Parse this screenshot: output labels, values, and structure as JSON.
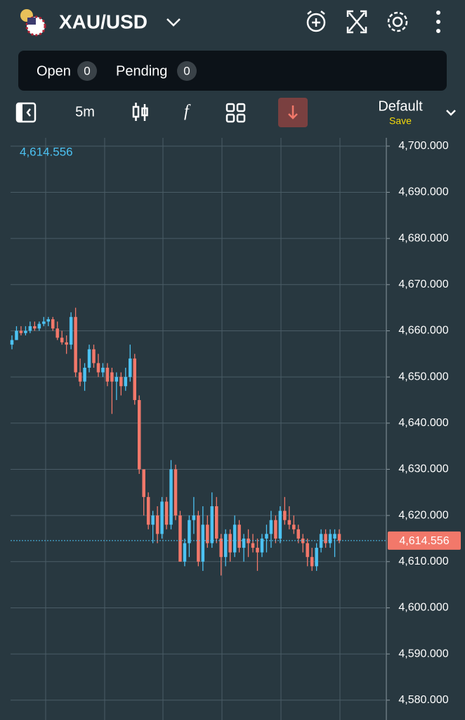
{
  "header": {
    "symbol": "XAU/USD",
    "tabs": [
      {
        "label": "Open",
        "count": 0
      },
      {
        "label": "Pending",
        "count": 0
      }
    ]
  },
  "toolbar": {
    "interval": "5m",
    "layout": "Default",
    "save": "Save"
  },
  "chart_data": {
    "type": "candlestick",
    "open": [
      4657,
      4658,
      4660,
      4659.5,
      4660,
      4661,
      4660.5,
      4661.5,
      4662,
      4662.5,
      4660.5,
      4658.5,
      4657.5,
      4657,
      4663,
      4651,
      4649,
      4652,
      4656,
      4653,
      4651,
      4652,
      4651,
      4649,
      4650,
      4648,
      4650,
      4654,
      4645,
      4630,
      4624,
      4618,
      4620,
      4616,
      4623,
      4618,
      4630,
      4620,
      4610,
      4614,
      4619,
      4620,
      4610,
      4618,
      4614,
      4622,
      4615,
      4611,
      4616,
      4612,
      4618,
      4613,
      4615,
      4614,
      4613,
      4612,
      4615,
      4616,
      4619,
      4615,
      4621,
      4619,
      4618,
      4617,
      4615,
      4614,
      4611,
      4609,
      4613,
      4616,
      4614,
      4615,
      4616
    ],
    "high": [
      4659,
      4661,
      4661,
      4661,
      4662,
      4662,
      4662,
      4663,
      4663,
      4663,
      4662,
      4660,
      4659,
      4664,
      4665,
      4654,
      4653,
      4657,
      4657,
      4655,
      4653,
      4653,
      4652,
      4651,
      4651,
      4652,
      4657,
      4655,
      4646,
      4630,
      4625,
      4621,
      4622,
      4624,
      4624,
      4632,
      4631,
      4621,
      4615,
      4620,
      4624,
      4621,
      4622,
      4620,
      4625,
      4624,
      4616,
      4617,
      4617,
      4620,
      4619,
      4616,
      4617,
      4616,
      4615,
      4616,
      4618,
      4621,
      4620,
      4622,
      4624,
      4622,
      4620,
      4618,
      4616,
      4615,
      4613,
      4614,
      4617,
      4617,
      4617,
      4617,
      4617
    ],
    "low": [
      4656,
      4658,
      4659,
      4659,
      4659.5,
      4660,
      4660,
      4661,
      4661,
      4660,
      4658,
      4657,
      4655,
      4656,
      4650,
      4648,
      4647,
      4651,
      4652,
      4650,
      4650,
      4648,
      4642,
      4645,
      4646,
      4647,
      4649,
      4644,
      4629,
      4620,
      4617,
      4614,
      4614,
      4615,
      4617,
      4617,
      4619,
      4610,
      4609,
      4611,
      4616,
      4609,
      4608,
      4613,
      4613,
      4614,
      4607,
      4609,
      4610,
      4611,
      4612,
      4610,
      4611,
      4612,
      4608,
      4611,
      4612,
      4613,
      4614,
      4614,
      4618,
      4617,
      4616,
      4614,
      4612,
      4609,
      4608,
      4608,
      4612,
      4613,
      4613,
      4611,
      4614
    ],
    "close": [
      4658,
      4660,
      4659.5,
      4660,
      4661,
      4660.5,
      4661.5,
      4662,
      4662.5,
      4660.5,
      4658.5,
      4657.5,
      4657,
      4663,
      4651,
      4649,
      4652,
      4656,
      4653,
      4651,
      4652,
      4649,
      4649,
      4650,
      4648,
      4650,
      4654,
      4645,
      4630,
      4624,
      4618,
      4620,
      4616,
      4623,
      4618,
      4630,
      4620,
      4610,
      4614,
      4619,
      4620,
      4610,
      4618,
      4614,
      4622,
      4615,
      4611,
      4616,
      4612,
      4618,
      4613,
      4615,
      4614,
      4613,
      4612,
      4615,
      4616,
      4619,
      4615,
      4621,
      4619,
      4618,
      4617,
      4615,
      4614,
      4611,
      4609,
      4613,
      4616,
      4614,
      4616,
      4616,
      4614.556
    ],
    "up_color": "#4cc2f2",
    "down_color": "#f2786a",
    "ylim": [
      4575.7,
      4701.8
    ],
    "yticks": [
      {
        "value": 4580,
        "label": "4,580.000"
      },
      {
        "value": 4590,
        "label": "4,590.000"
      },
      {
        "value": 4600,
        "label": "4,600.000"
      },
      {
        "value": 4610,
        "label": "4,610.000"
      },
      {
        "value": 4620,
        "label": "4,620.000"
      },
      {
        "value": 4630,
        "label": "4,630.000"
      },
      {
        "value": 4640,
        "label": "4,640.000"
      },
      {
        "value": 4650,
        "label": "4,650.000"
      },
      {
        "value": 4660,
        "label": "4,660.000"
      },
      {
        "value": 4670,
        "label": "4,670.000"
      },
      {
        "value": 4680,
        "label": "4,680.000"
      },
      {
        "value": 4690,
        "label": "4,690.000"
      },
      {
        "value": 4700,
        "label": "4,700.000"
      }
    ],
    "last_price": {
      "value": 4614.556,
      "label": "4,614.556"
    },
    "grid": true
  }
}
